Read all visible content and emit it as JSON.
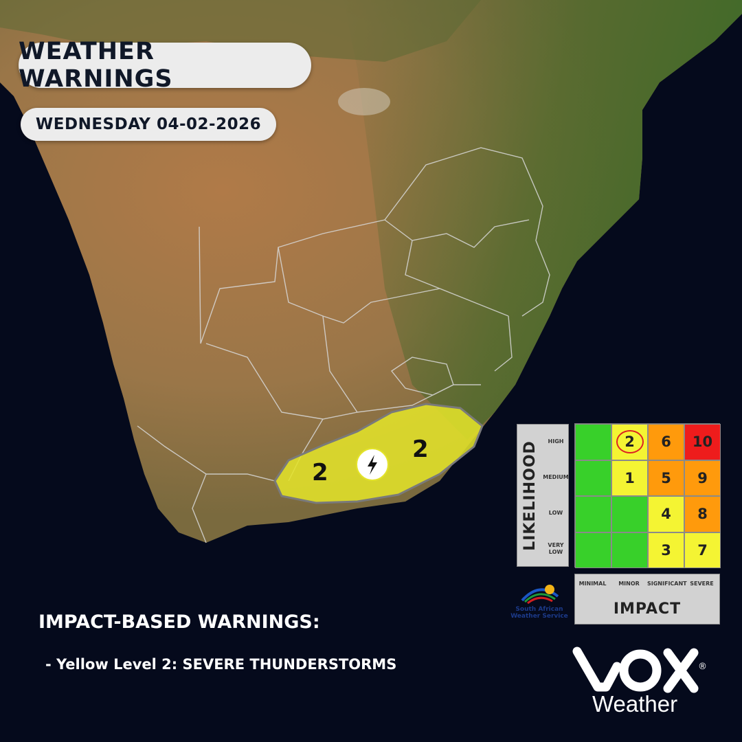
{
  "header": {
    "title": "WEATHER WARNINGS",
    "date": "WEDNESDAY 04-02-2026"
  },
  "map": {
    "warning_area": {
      "fill_color": "#e3e32a",
      "levels": [
        "2",
        "2"
      ],
      "icon": "lightning-icon"
    },
    "colors": {
      "ocean": "#050a1c",
      "land_dry": "#a07a50",
      "land_green": "#4d6a2a",
      "borders": "#d8d8d8"
    }
  },
  "legend": {
    "likelihood_title": "LIKELIHOOD",
    "likelihood_rows": [
      "HIGH",
      "MEDIUM",
      "LOW",
      "VERY LOW"
    ],
    "impact_title": "IMPACT",
    "impact_cols": [
      "MINIMAL",
      "MINOR",
      "SIGNIFICANT",
      "SEVERE"
    ],
    "matrix": [
      [
        {
          "v": "",
          "c": "#38d02a"
        },
        {
          "v": "2",
          "c": "#f4f433",
          "circled": true
        },
        {
          "v": "6",
          "c": "#ff9a0c"
        },
        {
          "v": "10",
          "c": "#ee1c1c"
        }
      ],
      [
        {
          "v": "",
          "c": "#38d02a"
        },
        {
          "v": "1",
          "c": "#f4f433"
        },
        {
          "v": "5",
          "c": "#ff9a0c"
        },
        {
          "v": "9",
          "c": "#ff9a0c"
        }
      ],
      [
        {
          "v": "",
          "c": "#38d02a"
        },
        {
          "v": "",
          "c": "#38d02a"
        },
        {
          "v": "4",
          "c": "#f4f433"
        },
        {
          "v": "8",
          "c": "#ff9a0c"
        }
      ],
      [
        {
          "v": "",
          "c": "#38d02a"
        },
        {
          "v": "",
          "c": "#38d02a"
        },
        {
          "v": "3",
          "c": "#f4f433"
        },
        {
          "v": "7",
          "c": "#f4f433"
        }
      ]
    ],
    "saws_logo_text": "South African Weather Service"
  },
  "warnings": {
    "heading": "IMPACT-BASED WARNINGS:",
    "items": [
      "- Yellow Level 2: SEVERE THUNDERSTORMS"
    ]
  },
  "brand": {
    "logo_text": "VOX",
    "registered": "®",
    "sub": "Weather"
  }
}
